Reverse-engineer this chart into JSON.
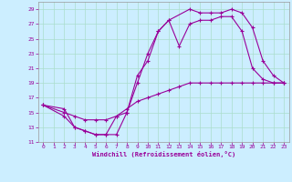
{
  "background_color": "#cceeff",
  "grid_color": "#aaddcc",
  "line_color": "#990099",
  "xlabel": "Windchill (Refroidissement éolien,°C)",
  "xlim": [
    -0.5,
    23.5
  ],
  "ylim": [
    11,
    30
  ],
  "yticks": [
    11,
    13,
    15,
    17,
    19,
    21,
    23,
    25,
    27,
    29
  ],
  "xticks": [
    0,
    1,
    2,
    3,
    4,
    5,
    6,
    7,
    8,
    9,
    10,
    11,
    12,
    13,
    14,
    15,
    16,
    17,
    18,
    19,
    20,
    21,
    22,
    23
  ],
  "line1_x": [
    0,
    2,
    3,
    4,
    5,
    6,
    7,
    8,
    9,
    10,
    11,
    12,
    14,
    15,
    16,
    17,
    18,
    19,
    20,
    21,
    22,
    23
  ],
  "line1_y": [
    16,
    15.5,
    13,
    12.5,
    12,
    12,
    12,
    15,
    19,
    23,
    26,
    27.5,
    29,
    28.5,
    28.5,
    28.5,
    29,
    28.5,
    26.5,
    22,
    20,
    19
  ],
  "line2_x": [
    0,
    2,
    3,
    4,
    5,
    6,
    7,
    8,
    9,
    10,
    11,
    12,
    13,
    14,
    15,
    16,
    17,
    18,
    19,
    20,
    21,
    22,
    23
  ],
  "line2_y": [
    16,
    14.5,
    13,
    12.5,
    12,
    12,
    14.5,
    15,
    20,
    22,
    26,
    27.5,
    24,
    27,
    27.5,
    27.5,
    28,
    28,
    26,
    21,
    19.5,
    19,
    19
  ],
  "line3_x": [
    0,
    2,
    3,
    4,
    5,
    6,
    7,
    8,
    9,
    10,
    11,
    12,
    13,
    14,
    15,
    16,
    17,
    18,
    19,
    20,
    21,
    22,
    23
  ],
  "line3_y": [
    16,
    15,
    14.5,
    14,
    14,
    14,
    14.5,
    15.5,
    16.5,
    17,
    17.5,
    18,
    18.5,
    19,
    19,
    19,
    19,
    19,
    19,
    19,
    19,
    19,
    19
  ]
}
